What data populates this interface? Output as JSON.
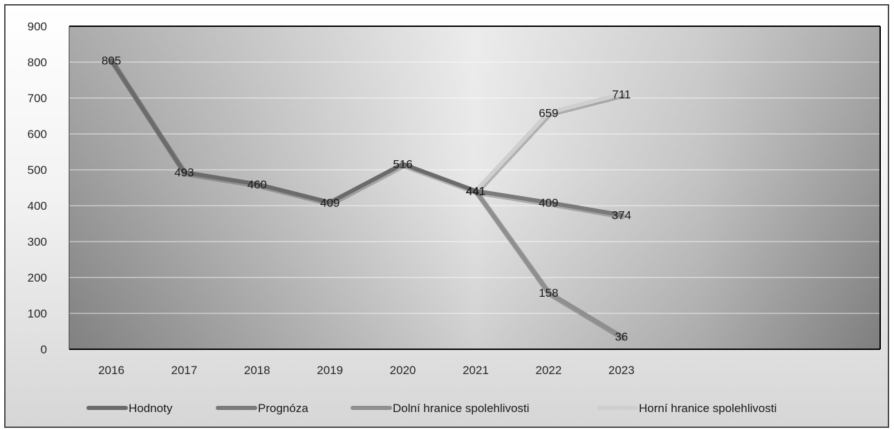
{
  "chart_data": {
    "type": "line",
    "title": "",
    "xlabel": "",
    "ylabel": "",
    "categories": [
      "2016",
      "2017",
      "2018",
      "2019",
      "2020",
      "2021",
      "2022",
      "2023"
    ],
    "ylim": [
      0,
      900
    ],
    "yticks": [
      "0",
      "100",
      "200",
      "300",
      "400",
      "500",
      "600",
      "700",
      "800",
      "900"
    ],
    "grid": true,
    "legend_position": "bottom",
    "series": [
      {
        "name": "Hodnoty",
        "color": "#6b6b6b",
        "values": [
          805,
          493,
          460,
          409,
          516,
          441,
          null,
          null
        ],
        "labels": [
          "805",
          "493",
          "460",
          "409",
          "516",
          "441",
          "",
          ""
        ]
      },
      {
        "name": "Prognóza",
        "color": "#7a7a7a",
        "values": [
          null,
          null,
          null,
          null,
          null,
          441,
          409,
          374
        ],
        "labels": [
          "",
          "",
          "",
          "",
          "",
          "441",
          "409",
          "374"
        ]
      },
      {
        "name": "Dolní hranice spolehlivosti",
        "color": "#8f8f8f",
        "values": [
          null,
          null,
          null,
          null,
          null,
          441,
          158,
          36
        ],
        "labels": [
          "",
          "",
          "",
          "",
          "",
          "441",
          "158",
          "36"
        ]
      },
      {
        "name": "Horní hranice spolehlivosti",
        "color": "#cfcfcf",
        "values": [
          null,
          null,
          null,
          null,
          null,
          441,
          659,
          711
        ],
        "labels": [
          "",
          "",
          "",
          "",
          "",
          "441",
          "659",
          "711"
        ]
      }
    ]
  }
}
